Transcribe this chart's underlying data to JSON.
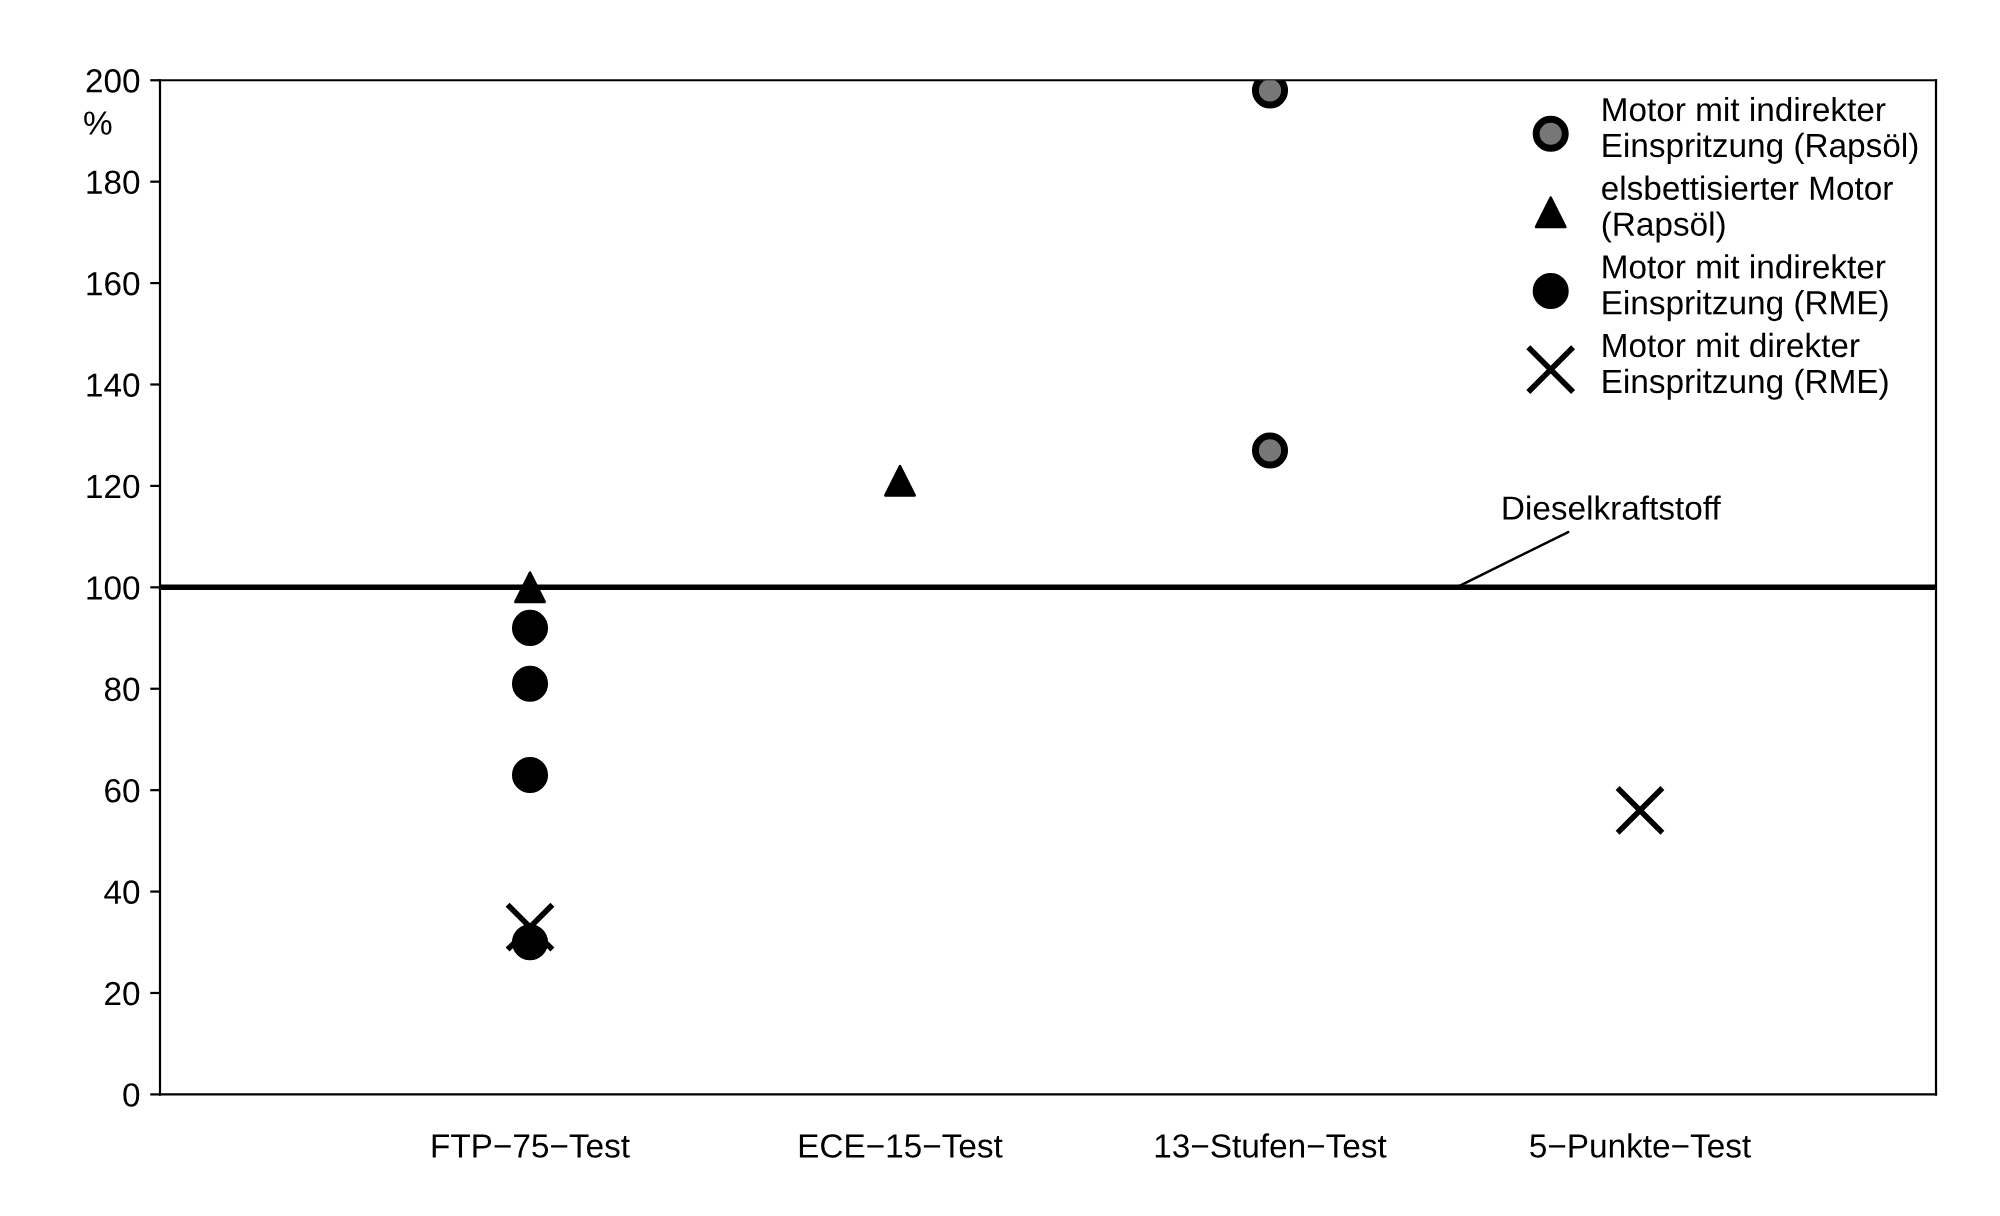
{
  "chart_data": {
    "type": "scatter",
    "ylabel": "%",
    "categories": [
      "FTP−75−Test",
      "ECE−15−Test",
      "13−Stufen−Test",
      "5−Punkte−Test"
    ],
    "series": [
      {
        "name": "Motor mit indirekter\nEinspritzung (Rapsöl)",
        "color": "#777777",
        "marker": "circle",
        "x": [
          "13−Stufen−Test",
          "13−Stufen−Test"
        ],
        "values": [
          198,
          127
        ]
      },
      {
        "name": "elsbettisierter Motor\n(Rapsöl)",
        "color": "#000000",
        "marker": "triangle",
        "x": [
          "FTP−75−Test",
          "ECE−15−Test"
        ],
        "values": [
          100,
          121
        ]
      },
      {
        "name": "Motor mit indirekter\nEinspritzung (RME)",
        "color": "#000000",
        "marker": "circle",
        "x": [
          "FTP−75−Test",
          "FTP−75−Test",
          "FTP−75−Test",
          "FTP−75−Test"
        ],
        "values": [
          92,
          81,
          63,
          30
        ]
      },
      {
        "name": "Motor mit direkter\nEinspritzung (RME)",
        "color": "#000000",
        "marker": "cross",
        "x": [
          "FTP−75−Test",
          "5−Punkte−Test"
        ],
        "values": [
          33,
          56
        ]
      }
    ],
    "ylim": [
      0,
      200
    ],
    "yticks": [
      0,
      20,
      40,
      60,
      80,
      100,
      120,
      140,
      160,
      180,
      200
    ],
    "ref_lines": [
      {
        "axis": "y",
        "value": 100,
        "label": "Dieselkraftstoff",
        "color": "#000000",
        "line_style": "solid"
      }
    ],
    "grid": false,
    "legend": "top right"
  }
}
